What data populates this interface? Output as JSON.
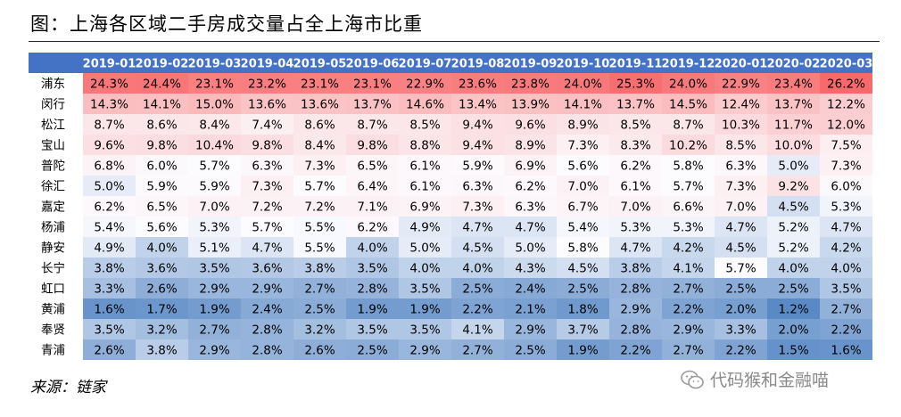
{
  "title": "图：上海各区域二手房成交量占全上海市比重",
  "source": "来源：链家",
  "watermark": "代码猴和金融喵",
  "icons": {
    "watermark": "wechat-icon"
  },
  "colors": {
    "header": "#4472C4",
    "header_text": "#FFFFFF",
    "high": "#F8696B",
    "mid": "#FCFCFF",
    "low": "#5A8AC6"
  },
  "chart_data": {
    "type": "heatmap",
    "title": "上海各区域二手房成交量占全上海市比重",
    "columns": [
      "2019-01",
      "2019-02",
      "2019-03",
      "2019-04",
      "2019-05",
      "2019-06",
      "2019-07",
      "2019-08",
      "2019-09",
      "2019-10",
      "2019-11",
      "2019-12",
      "2020-01",
      "2020-02",
      "2020-03"
    ],
    "rows": [
      "浦东",
      "闵行",
      "松江",
      "宝山",
      "普陀",
      "徐汇",
      "嘉定",
      "杨浦",
      "静安",
      "长宁",
      "虹口",
      "黄浦",
      "奉贤",
      "青浦"
    ],
    "values": [
      [
        24.3,
        24.4,
        23.1,
        23.2,
        23.1,
        23.1,
        22.9,
        23.6,
        23.8,
        24.0,
        25.3,
        24.0,
        22.9,
        23.4,
        26.2
      ],
      [
        14.3,
        14.1,
        15.0,
        13.6,
        13.6,
        13.7,
        14.6,
        13.4,
        13.9,
        14.1,
        13.7,
        14.5,
        12.4,
        13.7,
        12.2
      ],
      [
        8.7,
        8.6,
        8.4,
        7.4,
        8.6,
        8.7,
        8.5,
        9.4,
        9.6,
        8.9,
        8.5,
        8.7,
        10.3,
        11.7,
        12.0
      ],
      [
        9.6,
        9.8,
        10.4,
        9.8,
        8.4,
        9.8,
        8.8,
        9.4,
        8.9,
        7.3,
        8.3,
        10.2,
        8.5,
        10.0,
        7.5
      ],
      [
        6.8,
        6.0,
        5.7,
        6.3,
        7.3,
        6.5,
        6.1,
        5.9,
        6.9,
        5.6,
        6.2,
        5.8,
        6.3,
        5.0,
        7.3
      ],
      [
        5.0,
        5.9,
        5.9,
        7.3,
        5.7,
        6.4,
        6.1,
        6.3,
        6.2,
        7.0,
        6.1,
        5.7,
        7.3,
        9.2,
        6.0
      ],
      [
        6.2,
        6.5,
        7.0,
        7.2,
        7.2,
        7.1,
        6.9,
        7.3,
        6.3,
        6.7,
        7.0,
        6.6,
        7.0,
        4.5,
        5.3
      ],
      [
        5.4,
        5.6,
        5.3,
        5.7,
        5.5,
        6.2,
        4.9,
        4.7,
        4.7,
        5.4,
        5.3,
        5.3,
        4.7,
        5.2,
        4.7
      ],
      [
        4.9,
        4.0,
        5.1,
        4.7,
        5.5,
        4.0,
        5.0,
        4.5,
        5.0,
        5.8,
        4.7,
        4.2,
        4.5,
        5.2,
        4.2
      ],
      [
        3.8,
        3.6,
        3.5,
        3.6,
        3.8,
        3.5,
        4.0,
        4.0,
        4.3,
        4.5,
        3.8,
        4.1,
        5.7,
        4.0,
        4.0
      ],
      [
        3.3,
        2.6,
        2.9,
        2.9,
        2.7,
        2.8,
        3.5,
        2.5,
        2.4,
        2.5,
        2.8,
        2.7,
        2.5,
        2.5,
        3.5
      ],
      [
        1.6,
        1.7,
        1.9,
        2.4,
        2.5,
        1.9,
        1.9,
        2.2,
        2.1,
        1.8,
        2.9,
        2.2,
        2.0,
        1.2,
        2.7
      ],
      [
        3.5,
        3.2,
        2.7,
        2.8,
        3.2,
        3.5,
        3.5,
        4.1,
        2.9,
        3.7,
        2.8,
        2.9,
        3.3,
        2.0,
        2.2
      ],
      [
        2.6,
        3.8,
        2.9,
        2.8,
        2.6,
        2.5,
        2.9,
        2.7,
        2.5,
        1.9,
        2.2,
        2.7,
        2.2,
        1.5,
        1.6
      ]
    ],
    "unit": "%"
  }
}
